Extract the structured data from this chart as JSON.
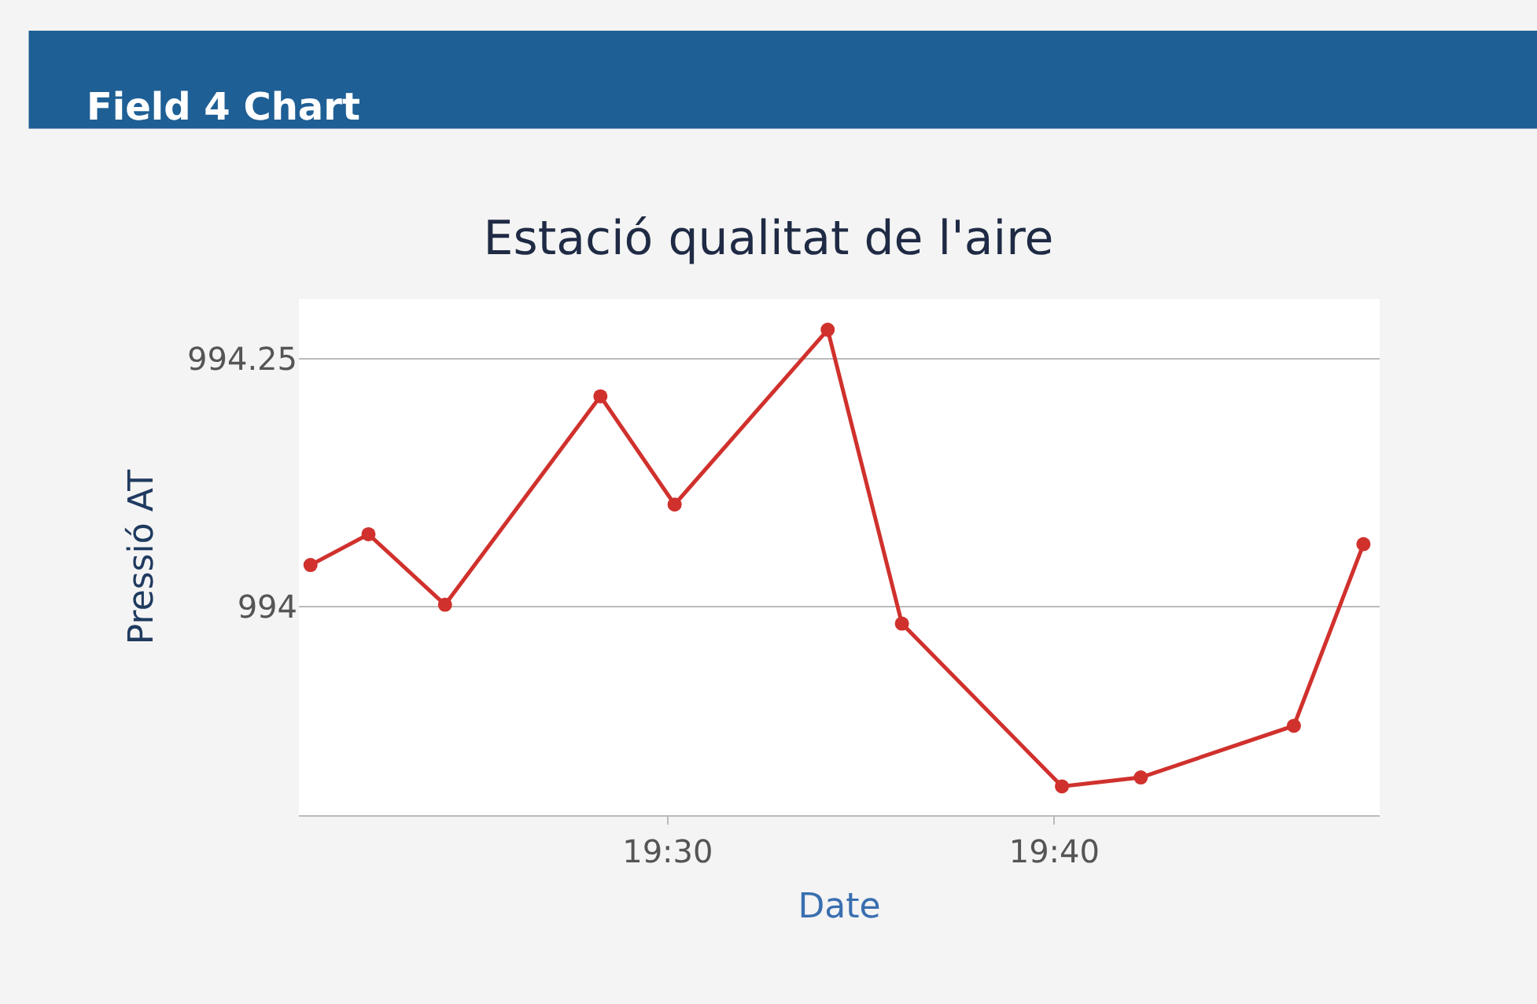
{
  "chart_data": {
    "type": "line",
    "title": "Estació qualitat de l'aire",
    "xlabel": "Date",
    "ylabel": "Pressió AT",
    "annotations": [
      "Field 4 Chart"
    ],
    "x": [
      19.346,
      19.371,
      19.404,
      19.471,
      19.503,
      19.569,
      19.601,
      19.67,
      19.704,
      19.77,
      19.8
    ],
    "series": [
      {
        "color": "#d0312d",
        "values": [
          994.042,
          994.073,
          994.002,
          994.212,
          994.103,
          994.279,
          993.983,
          993.819,
          993.828,
          993.88,
          994.063
        ]
      }
    ],
    "xlim": [
      19.341,
      19.807
    ],
    "xticks": [
      {
        "value": 19.5,
        "label": "19:30"
      },
      {
        "value": 19.6667,
        "label": "19:40"
      }
    ],
    "ylim": [
      993.79,
      994.31
    ],
    "yticks": [
      994,
      994.25
    ],
    "grid": "y",
    "legend": false,
    "marker": "circle",
    "line_style": "solid"
  }
}
